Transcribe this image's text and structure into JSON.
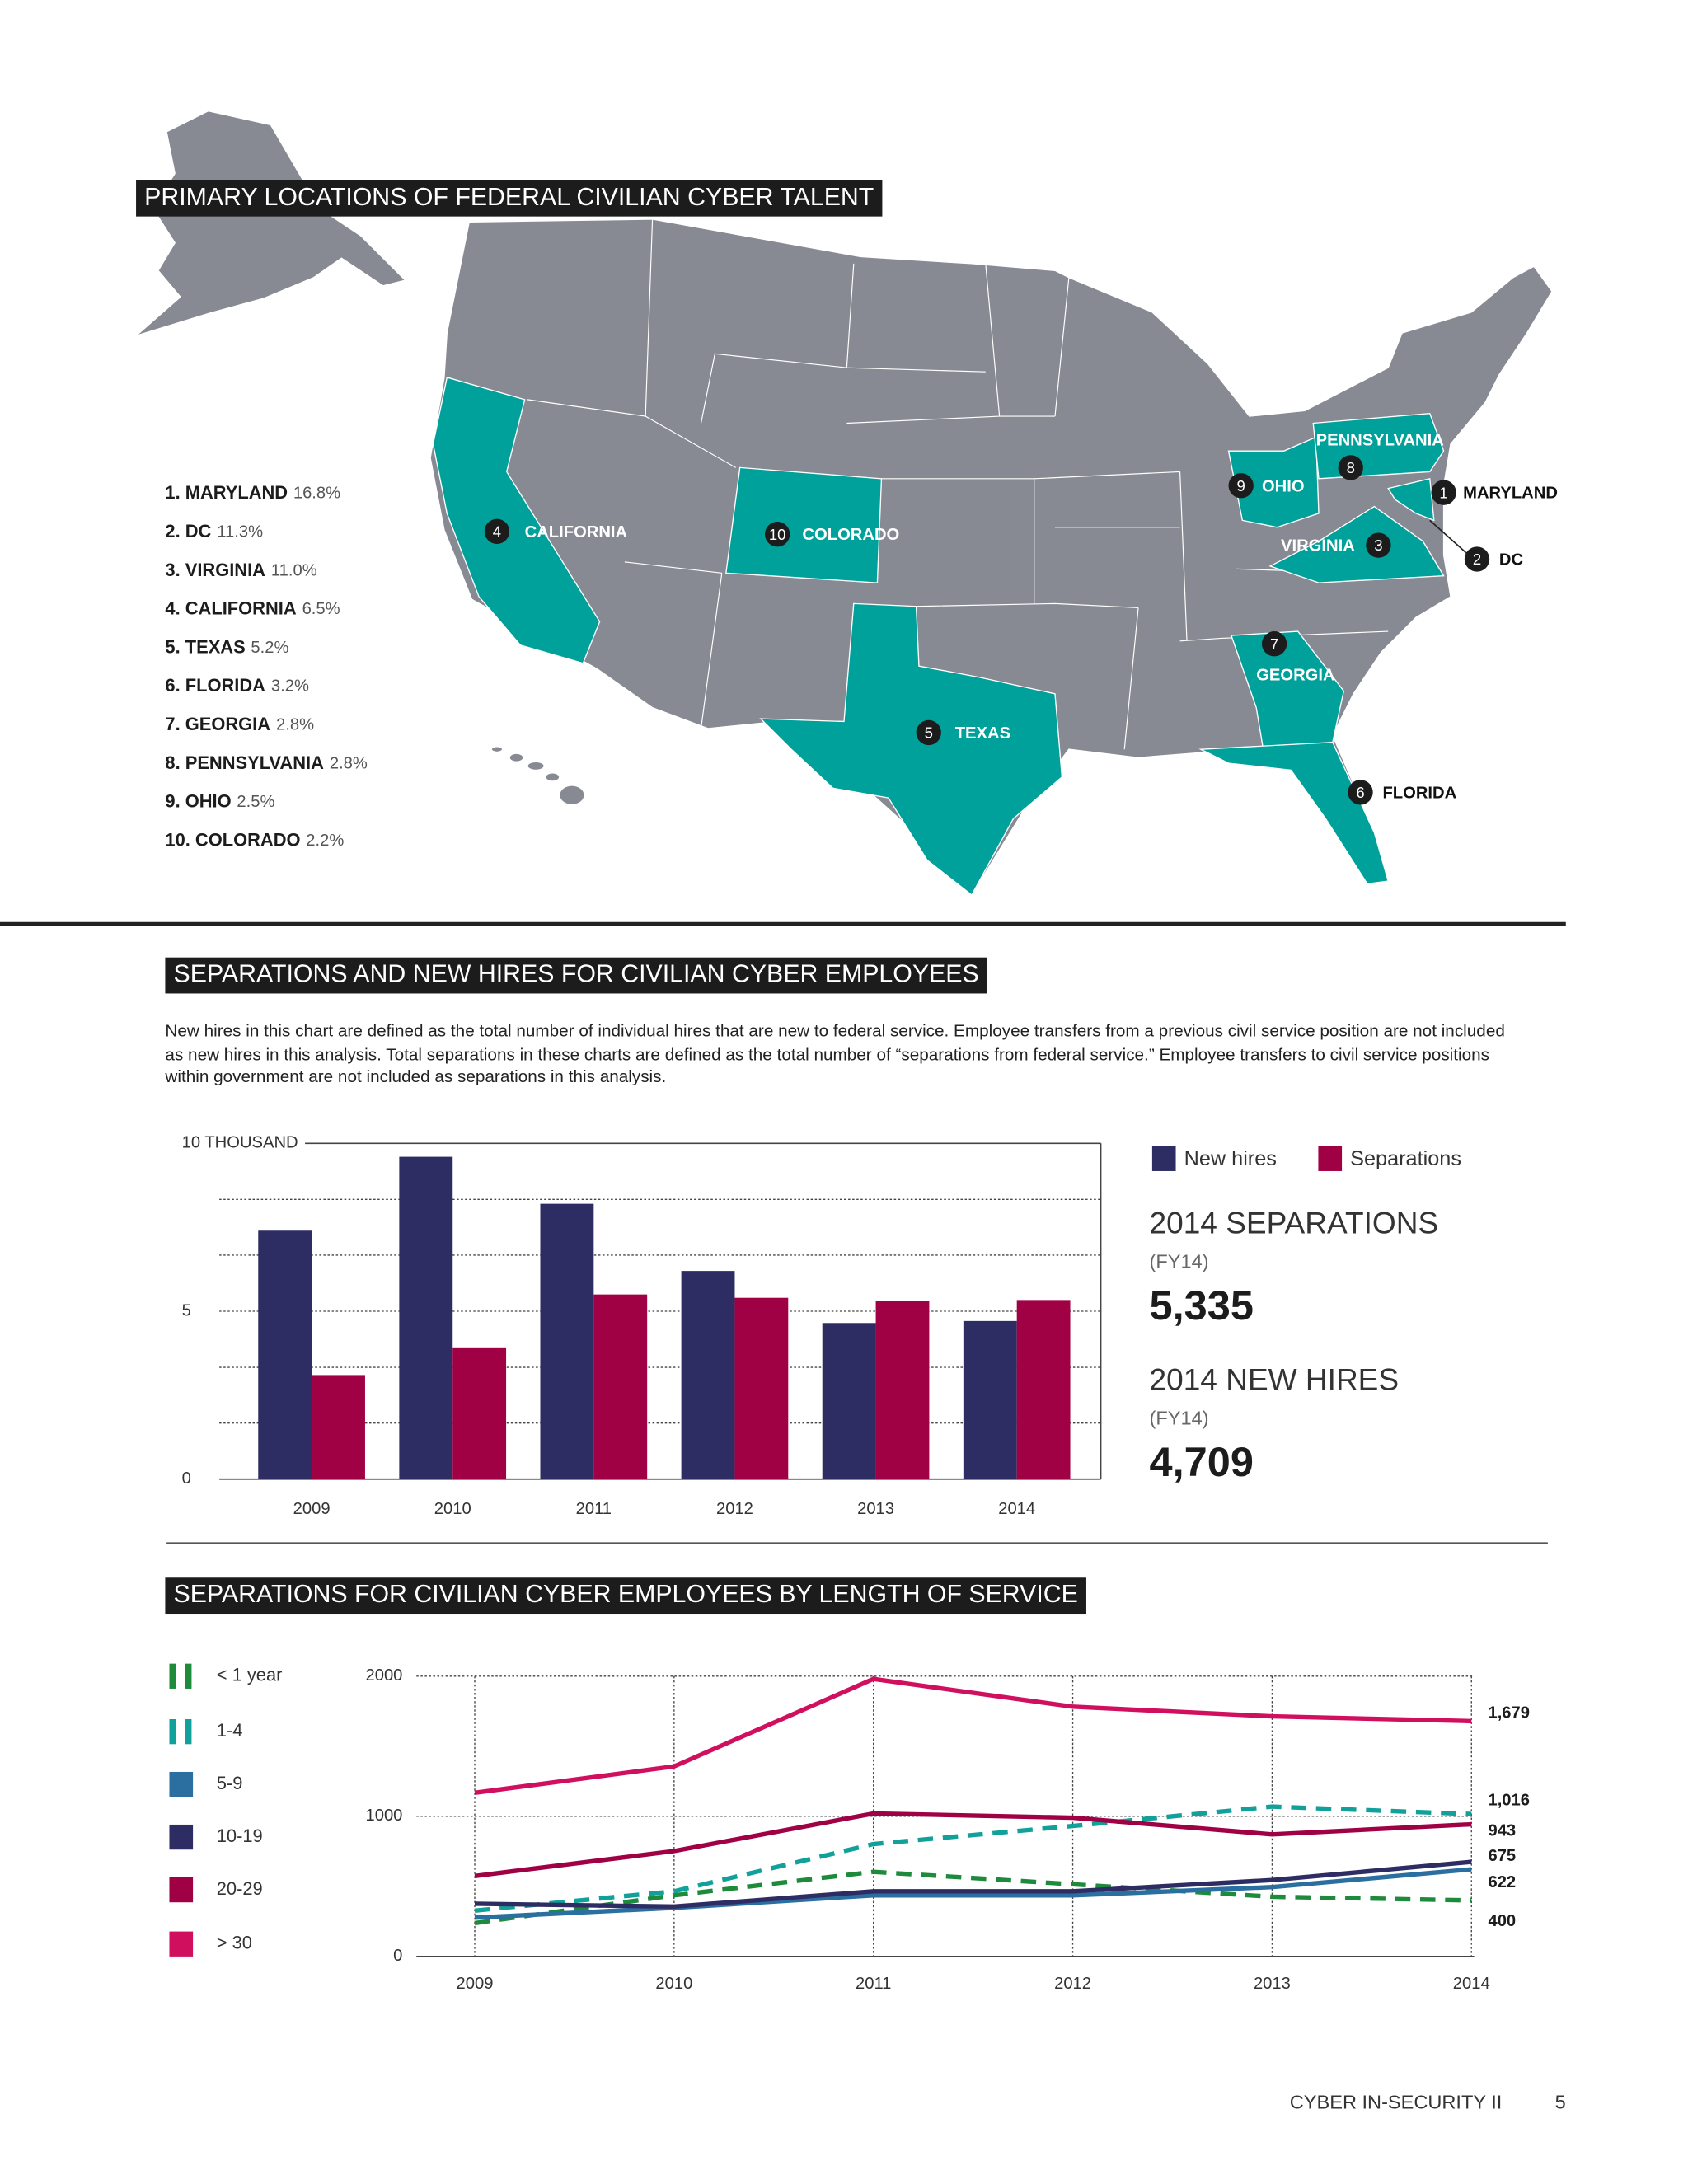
{
  "map": {
    "title": "PRIMARY LOCATIONS OF FEDERAL CIVILIAN CYBER TALENT",
    "ranking": [
      {
        "label": "1. MARYLAND",
        "share": "16.8%"
      },
      {
        "label": "2. DC",
        "share": "11.3%"
      },
      {
        "label": "3. VIRGINIA",
        "share": "11.0%"
      },
      {
        "label": "4. CALIFORNIA",
        "share": "6.5%"
      },
      {
        "label": "5. TEXAS",
        "share": "5.2%"
      },
      {
        "label": "6. FLORIDA",
        "share": "3.2%"
      },
      {
        "label": "7. GEORGIA",
        "share": "2.8%"
      },
      {
        "label": "8. PENNSYLVANIA",
        "share": "2.8%"
      },
      {
        "label": "9. OHIO",
        "share": "2.5%"
      },
      {
        "label": "10. COLORADO",
        "share": "2.2%"
      }
    ],
    "markers": [
      {
        "number": "1",
        "name": "MARYLAND"
      },
      {
        "number": "2",
        "name": "DC"
      },
      {
        "number": "3",
        "name": "VIRGINIA"
      },
      {
        "number": "4",
        "name": "CALIFORNIA"
      },
      {
        "number": "5",
        "name": "TEXAS"
      },
      {
        "number": "6",
        "name": "FLORIDA"
      },
      {
        "number": "7",
        "name": "GEORGIA"
      },
      {
        "number": "8",
        "name": "PENNSYLVANIA"
      },
      {
        "number": "9",
        "name": "OHIO"
      },
      {
        "number": "10",
        "name": "COLORADO"
      }
    ]
  },
  "chart_data": [
    {
      "type": "bar",
      "title": "SEPARATIONS AND NEW HIRES FOR CIVILIAN CYBER EMPLOYEES",
      "description": "New hires in this chart are defined as the total number of individual hires that are new to federal service. Employee transfers from a previous civil service position are not included as new hires in this analysis. Total separations in these charts are defined as the total number of “separations from federal service.” Employee transfers to civil service positions within government are not included as separations in this analysis.",
      "categories": [
        "2009",
        "2010",
        "2011",
        "2012",
        "2013",
        "2014"
      ],
      "series": [
        {
          "name": "New hires",
          "color": "#2e2d63",
          "values": [
            7.4,
            9.6,
            8.2,
            6.2,
            4.65,
            4.709
          ]
        },
        {
          "name": "Separations",
          "color": "#a00044",
          "values": [
            3.1,
            3.9,
            5.5,
            5.4,
            5.3,
            5.335
          ]
        }
      ],
      "ylim": [
        0,
        10
      ],
      "yticks": [
        0,
        5,
        {
          "value": 10,
          "label": "10 THOUSAND"
        }
      ],
      "minor_yticks": [
        1.67,
        3.33,
        6.67,
        8.33
      ],
      "grid": true,
      "stats": [
        {
          "title": "2014 SEPARATIONS",
          "note": "(FY14)",
          "value": "5,335"
        },
        {
          "title": "2014 NEW HIRES",
          "note": "(FY14)",
          "value": "4,709"
        }
      ]
    },
    {
      "type": "line",
      "title": "SEPARATIONS FOR CIVILIAN CYBER EMPLOYEES BY LENGTH OF SERVICE",
      "categories": [
        "2009",
        "2010",
        "2011",
        "2012",
        "2013",
        "2014"
      ],
      "series": [
        {
          "name": "< 1 year",
          "color": "#1e8a3c",
          "dashed": true,
          "values": [
            238,
            436,
            604,
            515,
            426,
            400
          ],
          "value_labels": [
            null,
            null,
            null,
            null,
            null,
            "400"
          ]
        },
        {
          "name": "1-4",
          "color": "#12a09a",
          "dashed": true,
          "values": [
            327,
            465,
            802,
            931,
            1069,
            1016
          ],
          "value_labels": [
            null,
            null,
            null,
            null,
            null,
            "1,016"
          ]
        },
        {
          "name": "5-9",
          "color": "#2a6fa0",
          "dashed": false,
          "values": [
            277,
            347,
            436,
            436,
            495,
            622
          ],
          "value_labels": [
            null,
            null,
            null,
            null,
            null,
            "622"
          ]
        },
        {
          "name": "10-19",
          "color": "#2e2d63",
          "dashed": false,
          "values": [
            376,
            356,
            465,
            465,
            545,
            675
          ],
          "value_labels": [
            null,
            null,
            null,
            null,
            null,
            "675"
          ]
        },
        {
          "name": "20-29",
          "color": "#a00044",
          "dashed": false,
          "values": [
            574,
            752,
            1020,
            990,
            871,
            943
          ],
          "value_labels": [
            null,
            null,
            null,
            null,
            null,
            "943"
          ]
        },
        {
          "name": "> 30",
          "color": "#d0105f",
          "dashed": false,
          "values": [
            1168,
            1356,
            1980,
            1782,
            1713,
            1679
          ],
          "value_labels": [
            null,
            null,
            null,
            null,
            null,
            "1,679"
          ]
        }
      ],
      "ylim": [
        0,
        2000
      ],
      "yticks": [
        0,
        1000,
        2000
      ],
      "grid": true
    }
  ],
  "footer": {
    "publication": "CYBER IN-SECURITY II",
    "page": "5"
  }
}
